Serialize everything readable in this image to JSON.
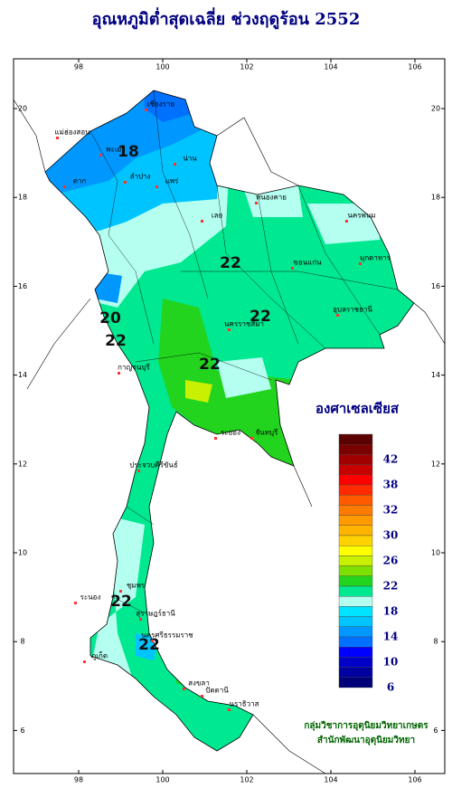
{
  "title": "อุณหภูมิต่ำสุดเฉลี่ย ช่วงฤดูร้อน 2552",
  "longitude_ticks": [
    98,
    100,
    102,
    104,
    106
  ],
  "latitude_ticks": [
    20,
    18,
    16,
    14,
    12,
    10,
    8,
    6
  ],
  "legend": {
    "title": "องศาเซลเซียส",
    "colors": [
      "#5a0000",
      "#7a0000",
      "#a00000",
      "#c80000",
      "#ff0000",
      "#ff2a00",
      "#ff5a00",
      "#ff7a00",
      "#ff9a00",
      "#ffb400",
      "#ffd200",
      "#ffff00",
      "#c8f000",
      "#7ee000",
      "#22d41e",
      "#00e890",
      "#b4fff0",
      "#00e4ff",
      "#00c4ff",
      "#0098ff",
      "#0070ff",
      "#0000ff",
      "#0000c8",
      "#0000a0",
      "#000078"
    ],
    "labels": [
      "42",
      "38",
      "32",
      "30",
      "26",
      "22",
      "18",
      "14",
      "10",
      "6"
    ]
  },
  "contour_labels": [
    "18",
    "20",
    "22",
    "22",
    "22",
    "22",
    "22",
    "22"
  ],
  "places": [
    "เชียงราย",
    "แม่ฮ่องสอน",
    "พะเยา",
    "น่าน",
    "ลำปาง",
    "แพร่",
    "ตาก",
    "เลย",
    "หนองคาย",
    "นครพนม",
    "ขอนแก่น",
    "มุกดาหาร",
    "อุบลราชธานี",
    "นครราชสีมา",
    "กาญจนบุรี",
    "ระยอง",
    "จันทบุรี",
    "ประจวบคีรีขันธ์",
    "ชุมพร",
    "ระนอง",
    "สุราษฎร์ธานี",
    "นครศรีธรรมราช",
    "ภูเก็ต",
    "สงขลา",
    "ปัตตานี",
    "นราธิวาส"
  ],
  "credits": [
    "กลุ่มวิชาการอุตุนิยมวิทยาเกษตร",
    "สำนักพัฒนาอุตุนิยมวิทยา"
  ]
}
